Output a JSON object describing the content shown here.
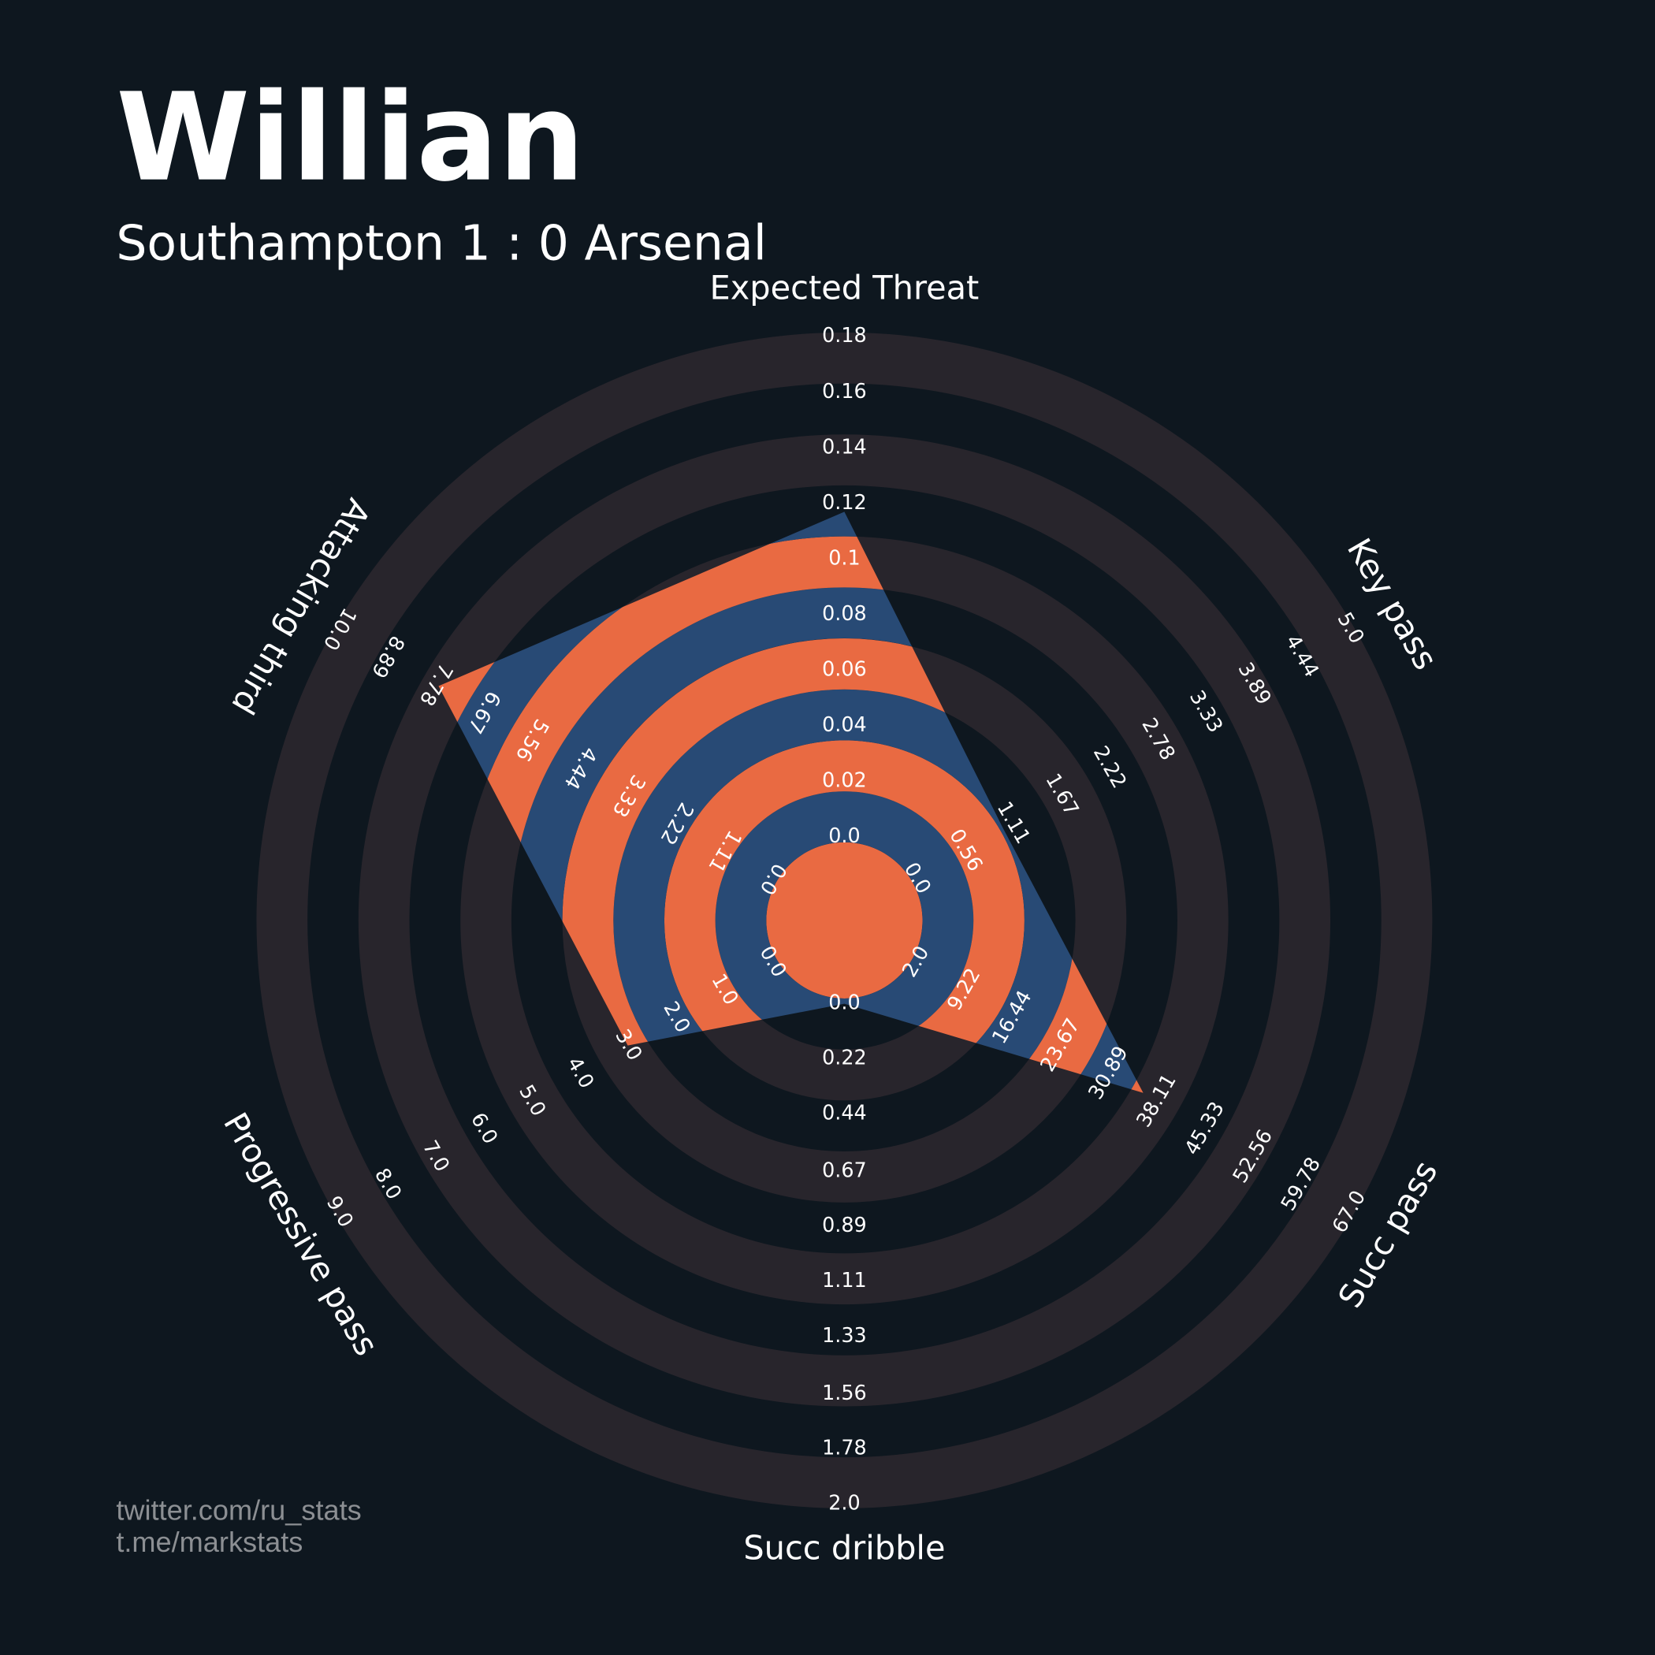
{
  "chart_data": {
    "type": "radar",
    "title": "Willian",
    "subtitle": "Southampton 1 : 0 Arsenal",
    "axes": [
      {
        "name": "Expected Threat",
        "lim": [
          0,
          0.18
        ],
        "ticks": [
          {
            "value": 0,
            "label": "0.0"
          },
          0.02,
          0.04,
          0.06,
          0.08,
          0.1,
          0.12,
          0.14,
          0.16,
          0.18
        ]
      },
      {
        "name": "Key pass",
        "lim": [
          0,
          5
        ],
        "ticks": [
          {
            "value": 0,
            "label": "0.0"
          },
          0.56,
          1.11,
          1.67,
          2.22,
          2.78,
          3.33,
          3.89,
          4.44,
          {
            "value": 5,
            "label": "5.0"
          }
        ]
      },
      {
        "name": "Succ pass",
        "lim": [
          2,
          67
        ],
        "ticks": [
          {
            "value": 2,
            "label": "2.0"
          },
          9.22,
          16.44,
          23.67,
          30.89,
          38.11,
          45.33,
          52.56,
          59.78,
          {
            "value": 67,
            "label": "67.0"
          }
        ]
      },
      {
        "name": "Succ dribble",
        "lim": [
          0,
          2
        ],
        "ticks": [
          {
            "value": 0,
            "label": "0.0"
          },
          0.22,
          0.44,
          0.67,
          0.89,
          1.11,
          1.33,
          1.56,
          1.78,
          {
            "value": 2,
            "label": "2.0"
          }
        ]
      },
      {
        "name": "Progressive pass",
        "lim": [
          0,
          9
        ],
        "ticks": [
          {
            "value": 0,
            "label": "0.0"
          },
          {
            "value": 1,
            "label": "1.0"
          },
          {
            "value": 2,
            "label": "2.0"
          },
          {
            "value": 3,
            "label": "3.0"
          },
          {
            "value": 4,
            "label": "4.0"
          },
          {
            "value": 5,
            "label": "5.0"
          },
          {
            "value": 6,
            "label": "6.0"
          },
          {
            "value": 7,
            "label": "7.0"
          },
          {
            "value": 8,
            "label": "8.0"
          },
          {
            "value": 9,
            "label": "9.0"
          }
        ]
      },
      {
        "name": "Attacking third",
        "lim": [
          0,
          10
        ],
        "ticks": [
          {
            "value": 0,
            "label": "0.0"
          },
          1.11,
          2.22,
          3.33,
          4.44,
          5.56,
          6.67,
          7.78,
          8.89,
          {
            "value": 10,
            "label": "10.0"
          }
        ]
      }
    ],
    "values": [
      0.117,
      1,
      36,
      0,
      3,
      7.7
    ],
    "colors": [
      "#e96a42",
      "#284a75"
    ],
    "ring_color": "#28252c",
    "footer": [
      "twitter.com/ru_stats",
      "t.me/markstats"
    ]
  }
}
